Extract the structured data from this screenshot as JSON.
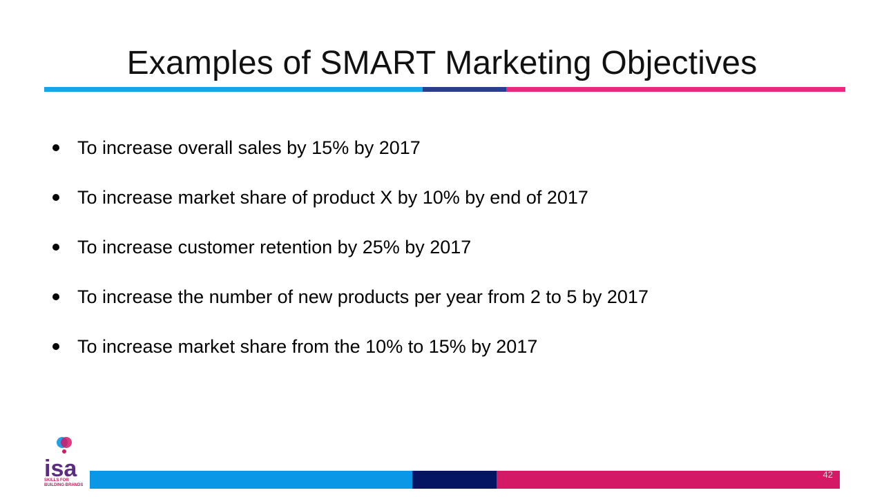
{
  "slide": {
    "title": "Examples of SMART Marketing Objectives",
    "bullets": [
      "To increase overall sales by 15% by 2017",
      "To increase market share of product X by 10% by end of 2017",
      "To increase customer retention by 25% by 2017",
      "To increase the number of new products  per year from 2 to 5 by 2017",
      "To increase market share from the 10% to 15% by 2017"
    ],
    "page_number": "42"
  },
  "logo": {
    "name": "isa",
    "tagline_line1": "SKILLS FOR",
    "tagline_line2": "BUILDING BRANDS",
    "icon": "isa-logo-icon"
  },
  "colors": {
    "top_rule": [
      "#12a7e8",
      "#2a3f89",
      "#e8297d"
    ],
    "bottom_rule": [
      "#0a97e6",
      "#061464",
      "#d41a66"
    ],
    "logo_pink": "#d41a66",
    "logo_blue": "#0a97e6",
    "logo_purple": "#5a2d82"
  }
}
